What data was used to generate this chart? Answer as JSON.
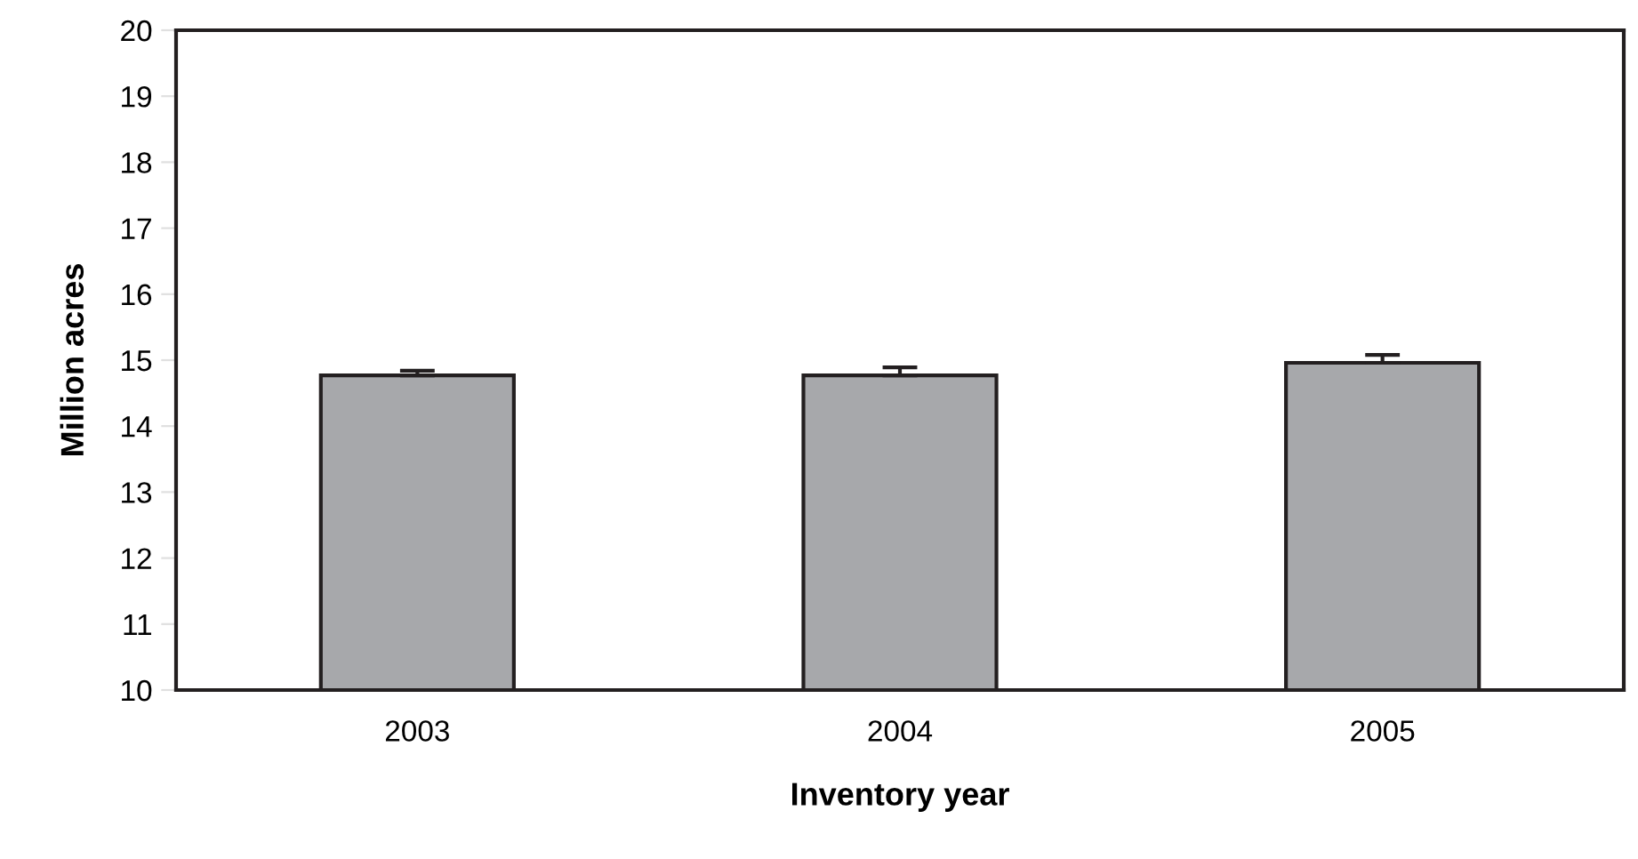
{
  "chart_data": {
    "type": "bar",
    "xlabel": "Inventory year",
    "ylabel": "Million acres",
    "categories": [
      "2003",
      "2004",
      "2005"
    ],
    "values": [
      14.77,
      14.77,
      14.96
    ],
    "errors": [
      [
        14.77,
        14.84
      ],
      [
        14.77,
        14.89
      ],
      [
        14.96,
        15.08
      ]
    ],
    "color": "#a7a8ab",
    "ylim": [
      10,
      20
    ],
    "yticks": [
      10,
      11,
      12,
      13,
      14,
      15,
      16,
      17,
      18,
      19,
      20
    ],
    "grid": false
  }
}
